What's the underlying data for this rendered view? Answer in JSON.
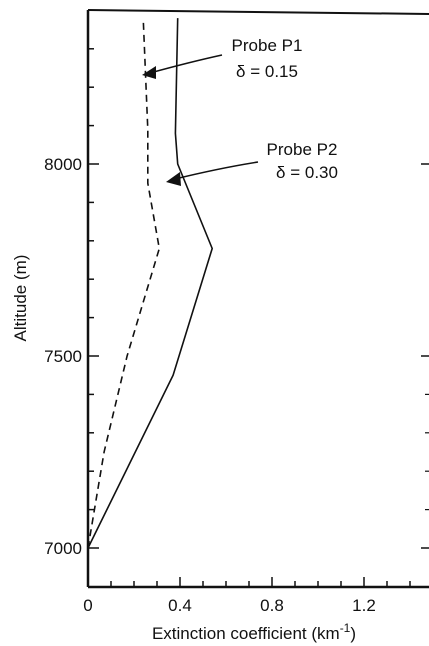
{
  "chart_data": {
    "type": "line",
    "xlabel": "Extinction coefficient (km",
    "xlabel_sup": "-1",
    "xlabel_close": ")",
    "ylabel": "Altitude (m)",
    "xlim": [
      0,
      1.5
    ],
    "ylim": [
      6900,
      8400
    ],
    "x_ticks": [
      {
        "value": 0,
        "label": "0"
      },
      {
        "value": 0.4,
        "label": "0.4"
      },
      {
        "value": 0.8,
        "label": "0.8"
      },
      {
        "value": 1.2,
        "label": "1.2"
      }
    ],
    "y_ticks": [
      {
        "value": 7000,
        "label": "7000"
      },
      {
        "value": 7500,
        "label": "7500"
      },
      {
        "value": 8000,
        "label": "8000"
      }
    ],
    "series": [
      {
        "name": "Probe P1",
        "style": "dashed",
        "color": "#111111",
        "points": [
          [
            0.0,
            7000
          ],
          [
            0.07,
            7250
          ],
          [
            0.17,
            7500
          ],
          [
            0.31,
            7780
          ],
          [
            0.26,
            7950
          ],
          [
            0.26,
            8090
          ],
          [
            0.24,
            8380
          ]
        ]
      },
      {
        "name": "Probe P2",
        "style": "solid",
        "color": "#111111",
        "points": [
          [
            0.0,
            7000
          ],
          [
            0.37,
            7450
          ],
          [
            0.54,
            7780
          ],
          [
            0.39,
            8000
          ],
          [
            0.38,
            8080
          ],
          [
            0.39,
            8380
          ]
        ]
      }
    ],
    "annotations": [
      {
        "id": "p1",
        "line1": "Probe P1",
        "line2": "δ = 0.15"
      },
      {
        "id": "p2",
        "line1": "Probe P2",
        "line2": "δ = 0.30"
      }
    ]
  }
}
